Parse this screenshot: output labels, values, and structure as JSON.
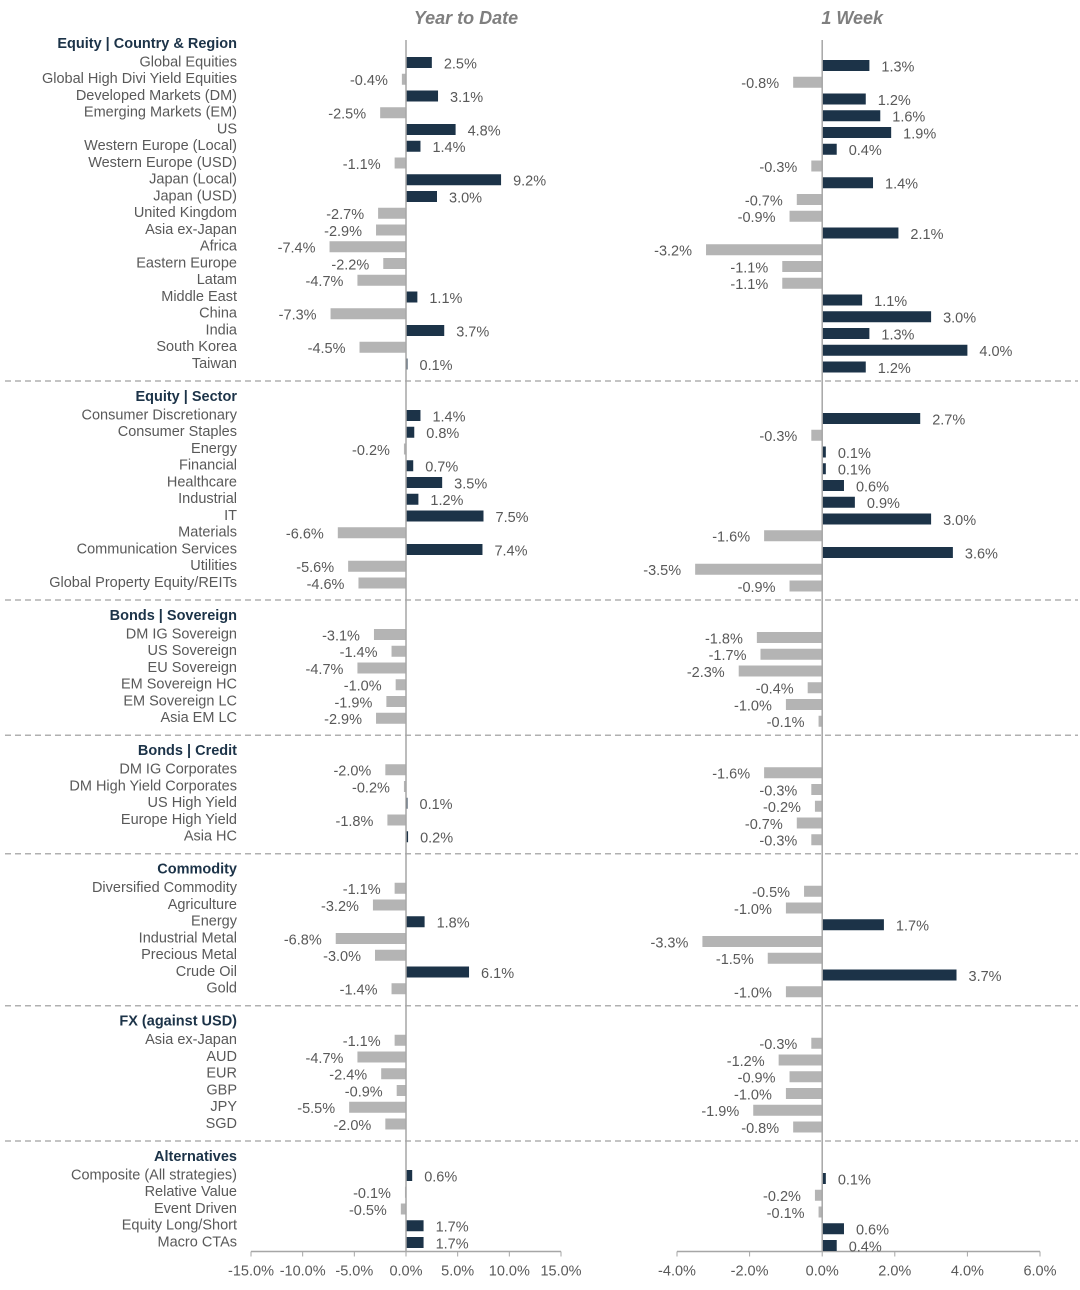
{
  "chart_data": {
    "type": "bar",
    "colors": {
      "positive": "#1c3348",
      "negative": "#b4b4b4"
    },
    "panels": [
      {
        "title": "Year to Date",
        "xlim": [
          -15,
          15
        ],
        "xticks": [
          {
            "value": -15,
            "label": "-15.0%"
          },
          {
            "value": -10,
            "label": "-10.0%"
          },
          {
            "value": -5,
            "label": "-5.0%"
          },
          {
            "value": 0,
            "label": "0.0%"
          },
          {
            "value": 5,
            "label": "5.0%"
          },
          {
            "value": 10,
            "label": "10.0%"
          },
          {
            "value": 15,
            "label": "15.0%"
          }
        ]
      },
      {
        "title": "1 Week",
        "xlim": [
          -4,
          6
        ],
        "xticks": [
          {
            "value": -4,
            "label": "-4.0%"
          },
          {
            "value": -2,
            "label": "-2.0%"
          },
          {
            "value": 0,
            "label": "0.0%"
          },
          {
            "value": 2,
            "label": "2.0%"
          },
          {
            "value": 4,
            "label": "4.0%"
          },
          {
            "value": 6,
            "label": "6.0%"
          }
        ]
      }
    ],
    "groups": [
      {
        "title": "Equity | Country & Region",
        "categories": [
          "Global Equities",
          "Global High Divi Yield Equities",
          "Developed Markets (DM)",
          "Emerging Markets (EM)",
          "US",
          "Western Europe (Local)",
          "Western Europe (USD)",
          "Japan (Local)",
          "Japan (USD)",
          "United Kingdom",
          "Asia ex-Japan",
          "Africa",
          "Eastern Europe",
          "Latam",
          "Middle East",
          "China",
          "India",
          "South Korea",
          "Taiwan"
        ],
        "series": [
          {
            "values": [
              2.5,
              -0.4,
              3.1,
              -2.5,
              4.8,
              1.4,
              -1.1,
              9.2,
              3.0,
              -2.7,
              -2.9,
              -7.4,
              -2.2,
              -4.7,
              1.1,
              -7.3,
              3.7,
              -4.5,
              0.1
            ],
            "value_labels": [
              "2.5%",
              "-0.4%",
              "3.1%",
              "-2.5%",
              "4.8%",
              "1.4%",
              "-1.1%",
              "9.2%",
              "3.0%",
              "-2.7%",
              "-2.9%",
              "-7.4%",
              "-2.2%",
              "-4.7%",
              "1.1%",
              "-7.3%",
              "3.7%",
              "-4.5%",
              "0.1%"
            ]
          },
          {
            "values": [
              1.3,
              -0.8,
              1.2,
              1.6,
              1.9,
              0.4,
              -0.3,
              1.4,
              -0.7,
              -0.9,
              2.1,
              -3.2,
              -1.1,
              -1.1,
              1.1,
              3.0,
              1.3,
              4.0,
              1.2
            ],
            "value_labels": [
              "1.3%",
              "-0.8%",
              "1.2%",
              "1.6%",
              "1.9%",
              "0.4%",
              "-0.3%",
              "1.4%",
              "-0.7%",
              "-0.9%",
              "2.1%",
              "-3.2%",
              "-1.1%",
              "-1.1%",
              "1.1%",
              "3.0%",
              "1.3%",
              "4.0%",
              "1.2%"
            ]
          }
        ]
      },
      {
        "title": "Equity | Sector",
        "categories": [
          "Consumer Discretionary",
          "Consumer Staples",
          "Energy",
          "Financial",
          "Healthcare",
          "Industrial",
          "IT",
          "Materials",
          "Communication Services",
          "Utilities",
          "Global Property Equity/REITs"
        ],
        "series": [
          {
            "values": [
              1.4,
              0.8,
              -0.2,
              0.7,
              3.5,
              1.2,
              7.5,
              -6.6,
              7.4,
              -5.6,
              -4.6
            ],
            "value_labels": [
              "1.4%",
              "0.8%",
              "-0.2%",
              "0.7%",
              "3.5%",
              "1.2%",
              "7.5%",
              "-6.6%",
              "7.4%",
              "-5.6%",
              "-4.6%"
            ]
          },
          {
            "values": [
              2.7,
              -0.3,
              0.1,
              0.1,
              0.6,
              0.9,
              3.0,
              -1.6,
              3.6,
              -3.5,
              -0.9
            ],
            "value_labels": [
              "2.7%",
              "-0.3%",
              "0.1%",
              "0.1%",
              "0.6%",
              "0.9%",
              "3.0%",
              "-1.6%",
              "3.6%",
              "-3.5%",
              "-0.9%"
            ]
          }
        ]
      },
      {
        "title": "Bonds | Sovereign",
        "categories": [
          "DM IG Sovereign",
          "US Sovereign",
          "EU Sovereign",
          "EM Sovereign HC",
          "EM Sovereign LC",
          "Asia EM LC"
        ],
        "series": [
          {
            "values": [
              -3.1,
              -1.4,
              -4.7,
              -1.0,
              -1.9,
              -2.9
            ],
            "value_labels": [
              "-3.1%",
              "-1.4%",
              "-4.7%",
              "-1.0%",
              "-1.9%",
              "-2.9%"
            ]
          },
          {
            "values": [
              -1.8,
              -1.7,
              -2.3,
              -0.4,
              -1.0,
              -0.1
            ],
            "value_labels": [
              "-1.8%",
              "-1.7%",
              "-2.3%",
              "-0.4%",
              "-1.0%",
              "-0.1%"
            ]
          }
        ]
      },
      {
        "title": "Bonds | Credit",
        "categories": [
          "DM IG Corporates",
          "DM High Yield Corporates",
          "US High Yield",
          "Europe High Yield",
          "Asia HC"
        ],
        "series": [
          {
            "values": [
              -2.0,
              -0.2,
              0.1,
              -1.8,
              0.2
            ],
            "value_labels": [
              "-2.0%",
              "-0.2%",
              "0.1%",
              "-1.8%",
              "0.2%"
            ]
          },
          {
            "values": [
              -1.6,
              -0.3,
              -0.2,
              -0.7,
              -0.3
            ],
            "value_labels": [
              "-1.6%",
              "-0.3%",
              "-0.2%",
              "-0.7%",
              "-0.3%"
            ]
          }
        ]
      },
      {
        "title": "Commodity",
        "categories": [
          "Diversified Commodity",
          "Agriculture",
          "Energy",
          "Industrial Metal",
          "Precious Metal",
          "Crude Oil",
          "Gold"
        ],
        "series": [
          {
            "values": [
              -1.1,
              -3.2,
              1.8,
              -6.8,
              -3.0,
              6.1,
              -1.4
            ],
            "value_labels": [
              "-1.1%",
              "-3.2%",
              "1.8%",
              "-6.8%",
              "-3.0%",
              "6.1%",
              "-1.4%"
            ]
          },
          {
            "values": [
              -0.5,
              -1.0,
              1.7,
              -3.3,
              -1.5,
              3.7,
              -1.0
            ],
            "value_labels": [
              "-0.5%",
              "-1.0%",
              "1.7%",
              "-3.3%",
              "-1.5%",
              "3.7%",
              "-1.0%"
            ]
          }
        ]
      },
      {
        "title": "FX (against USD)",
        "categories": [
          "Asia ex-Japan",
          "AUD",
          "EUR",
          "GBP",
          "JPY",
          "SGD"
        ],
        "series": [
          {
            "values": [
              -1.1,
              -4.7,
              -2.4,
              -0.9,
              -5.5,
              -2.0
            ],
            "value_labels": [
              "-1.1%",
              "-4.7%",
              "-2.4%",
              "-0.9%",
              "-5.5%",
              "-2.0%"
            ]
          },
          {
            "values": [
              -0.3,
              -1.2,
              -0.9,
              -1.0,
              -1.9,
              -0.8
            ],
            "value_labels": [
              "-0.3%",
              "-1.2%",
              "-0.9%",
              "-1.0%",
              "-1.9%",
              "-0.8%"
            ]
          }
        ]
      },
      {
        "title": "Alternatives",
        "categories": [
          "Composite (All strategies)",
          "Relative Value",
          "Event Driven",
          "Equity Long/Short",
          "Macro CTAs"
        ],
        "series": [
          {
            "values": [
              0.6,
              -0.1,
              -0.5,
              1.7,
              1.7
            ],
            "value_labels": [
              "0.6%",
              "-0.1%",
              "-0.5%",
              "1.7%",
              "1.7%"
            ]
          },
          {
            "values": [
              0.1,
              -0.2,
              -0.1,
              0.6,
              0.4
            ],
            "value_labels": [
              "0.1%",
              "-0.2%",
              "-0.1%",
              "0.6%",
              "0.4%"
            ]
          }
        ]
      }
    ]
  }
}
